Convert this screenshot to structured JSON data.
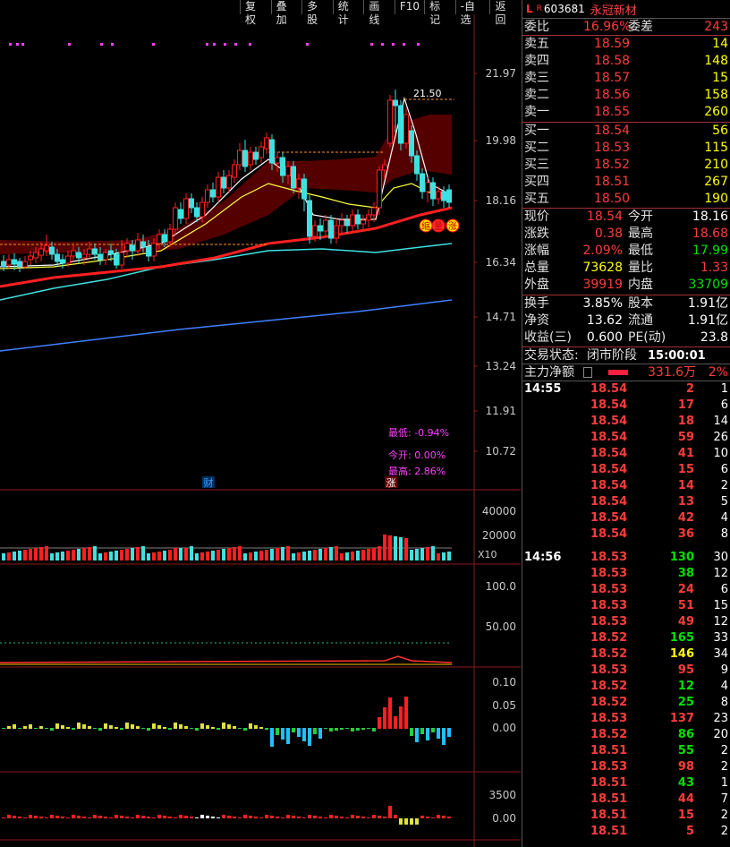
{
  "menu": [
    "复权",
    "叠加",
    "多股",
    "统计",
    "画线",
    "F10",
    "标记",
    "-自选",
    "返回"
  ],
  "stock": {
    "l_tag": "L",
    "r_tag": "R",
    "code": "603681",
    "name": "永冠新材"
  },
  "webi": {
    "label": "委比",
    "value": "16.96%",
    "diff_label": "委差",
    "diff": "243"
  },
  "sells": [
    {
      "label": "卖五",
      "price": "18.59",
      "vol": "14"
    },
    {
      "label": "卖四",
      "price": "18.58",
      "vol": "148"
    },
    {
      "label": "卖三",
      "price": "18.57",
      "vol": "15"
    },
    {
      "label": "卖二",
      "price": "18.56",
      "vol": "158"
    },
    {
      "label": "卖一",
      "price": "18.55",
      "vol": "260"
    }
  ],
  "buys": [
    {
      "label": "买一",
      "price": "18.54",
      "vol": "56"
    },
    {
      "label": "买二",
      "price": "18.53",
      "vol": "115"
    },
    {
      "label": "买三",
      "price": "18.52",
      "vol": "210"
    },
    {
      "label": "买四",
      "price": "18.51",
      "vol": "267"
    },
    {
      "label": "买五",
      "price": "18.50",
      "vol": "190"
    }
  ],
  "quote": [
    {
      "l1": "现价",
      "v1": "18.54",
      "c1": "red",
      "l2": "今开",
      "v2": "18.16",
      "c2": "white"
    },
    {
      "l1": "涨跌",
      "v1": "0.38",
      "c1": "red",
      "l2": "最高",
      "v2": "18.68",
      "c2": "red"
    },
    {
      "l1": "涨幅",
      "v1": "2.09%",
      "c1": "red",
      "l2": "最低",
      "v2": "17.99",
      "c2": "green"
    },
    {
      "l1": "总量",
      "v1": "73628",
      "c1": "yellow",
      "l2": "量比",
      "v2": "1.33",
      "c2": "red"
    },
    {
      "l1": "外盘",
      "v1": "39919",
      "c1": "red",
      "l2": "内盘",
      "v2": "33709",
      "c2": "green"
    }
  ],
  "fin": [
    {
      "l1": "换手",
      "v1": "3.85%",
      "l2": "股本",
      "v2": "1.91亿"
    },
    {
      "l1": "净资",
      "v1": "13.62",
      "l2": "流通",
      "v2": "1.91亿"
    },
    {
      "l1": "收益(三)",
      "v1": "0.600",
      "l2": "PE(动)",
      "v2": "23.8"
    }
  ],
  "status": {
    "label": "交易状态:",
    "value": "闭市阶段",
    "time": "15:00:01"
  },
  "main_net": {
    "label": "主力净额",
    "value": "331.6万",
    "pct": "2%"
  },
  "ticks_a": {
    "time": "14:55",
    "rows": [
      {
        "p": "18.54",
        "v": "2",
        "vc": "red",
        "n": "1"
      },
      {
        "p": "18.54",
        "v": "17",
        "vc": "red",
        "n": "6"
      },
      {
        "p": "18.54",
        "v": "18",
        "vc": "red",
        "n": "14"
      },
      {
        "p": "18.54",
        "v": "59",
        "vc": "red",
        "n": "26"
      },
      {
        "p": "18.54",
        "v": "41",
        "vc": "red",
        "n": "10"
      },
      {
        "p": "18.54",
        "v": "15",
        "vc": "red",
        "n": "6"
      },
      {
        "p": "18.54",
        "v": "14",
        "vc": "red",
        "n": "2"
      },
      {
        "p": "18.54",
        "v": "13",
        "vc": "red",
        "n": "5"
      },
      {
        "p": "18.54",
        "v": "42",
        "vc": "red",
        "n": "4"
      },
      {
        "p": "18.54",
        "v": "36",
        "vc": "red",
        "n": "8"
      }
    ]
  },
  "ticks_b": {
    "time": "14:56",
    "rows": [
      {
        "p": "18.53",
        "v": "130",
        "vc": "green",
        "n": "30"
      },
      {
        "p": "18.53",
        "v": "38",
        "vc": "green",
        "n": "12"
      },
      {
        "p": "18.53",
        "v": "24",
        "vc": "red",
        "n": "6"
      },
      {
        "p": "18.53",
        "v": "51",
        "vc": "red",
        "n": "15"
      },
      {
        "p": "18.53",
        "v": "49",
        "vc": "red",
        "n": "12"
      },
      {
        "p": "18.52",
        "v": "165",
        "vc": "green",
        "n": "33"
      },
      {
        "p": "18.52",
        "v": "146",
        "vc": "yellow",
        "n": "34"
      },
      {
        "p": "18.53",
        "v": "95",
        "vc": "red",
        "n": "9"
      },
      {
        "p": "18.52",
        "v": "12",
        "vc": "green",
        "n": "4"
      },
      {
        "p": "18.52",
        "v": "25",
        "vc": "green",
        "n": "8"
      },
      {
        "p": "18.53",
        "v": "137",
        "vc": "red",
        "n": "23"
      },
      {
        "p": "18.52",
        "v": "86",
        "vc": "green",
        "n": "20"
      },
      {
        "p": "18.51",
        "v": "55",
        "vc": "green",
        "n": "2"
      },
      {
        "p": "18.53",
        "v": "98",
        "vc": "red",
        "n": "2"
      },
      {
        "p": "18.51",
        "v": "43",
        "vc": "green",
        "n": "1"
      },
      {
        "p": "18.51",
        "v": "44",
        "vc": "red",
        "n": "7"
      },
      {
        "p": "18.51",
        "v": "15",
        "vc": "red",
        "n": "2"
      },
      {
        "p": "18.51",
        "v": "5",
        "vc": "red",
        "n": "2"
      }
    ]
  },
  "chart_data": {
    "type": "candlestick",
    "price_axis": [
      "21.97",
      "19.98",
      "18.16",
      "16.34",
      "14.71",
      "13.24",
      "11.91",
      "10.72"
    ],
    "volume_axis": [
      "40000",
      "20000"
    ],
    "volume_unit": "X10",
    "ind1_axis": [
      "100.0",
      "50.00"
    ],
    "ind2_axis": [
      "0.10",
      "0.05",
      "0.00"
    ],
    "ind3_axis": [
      "3500",
      "0.00"
    ],
    "high_label": "21.50",
    "labels": {
      "low": "最低: -0.94%",
      "open": "今开: 0.00%",
      "high": "最高: 2.86%",
      "fin": "财",
      "zhang": "涨"
    },
    "markers": [
      "缩",
      "量",
      "涨"
    ],
    "colors": {
      "up": "#ff2020",
      "down": "#40e0e0",
      "ma5": "#ffffff",
      "ma10": "#ffff40",
      "ma20": "#ff2020",
      "ma60": "#40e0e0",
      "ma120": "#4080ff"
    }
  }
}
